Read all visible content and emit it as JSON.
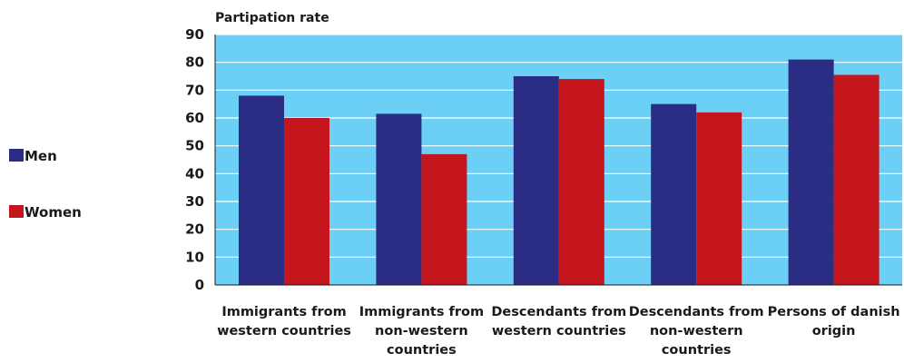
{
  "chart_data": {
    "type": "bar",
    "ylabel": "Partipation rate",
    "ylim": [
      0,
      90
    ],
    "yticks": [
      0,
      10,
      20,
      30,
      40,
      50,
      60,
      70,
      80,
      90
    ],
    "categories": [
      [
        "Immigrants from",
        "western countries"
      ],
      [
        "Immigrants from",
        "non-western",
        "countries"
      ],
      [
        "Descendants from",
        "western countries"
      ],
      [
        "Descendants from",
        "non-western",
        "countries"
      ],
      [
        "Persons of danish",
        "origin"
      ]
    ],
    "series": [
      {
        "name": "Men",
        "color": "#2b2c83",
        "values": [
          68,
          61.5,
          75,
          65,
          81
        ]
      },
      {
        "name": "Women",
        "color": "#c4161c",
        "values": [
          60,
          47,
          74,
          62,
          75.5
        ]
      }
    ],
    "plot_background": "#6ccff6",
    "gridline_color": "#ffffff",
    "grid": true,
    "legend_position": "left"
  }
}
